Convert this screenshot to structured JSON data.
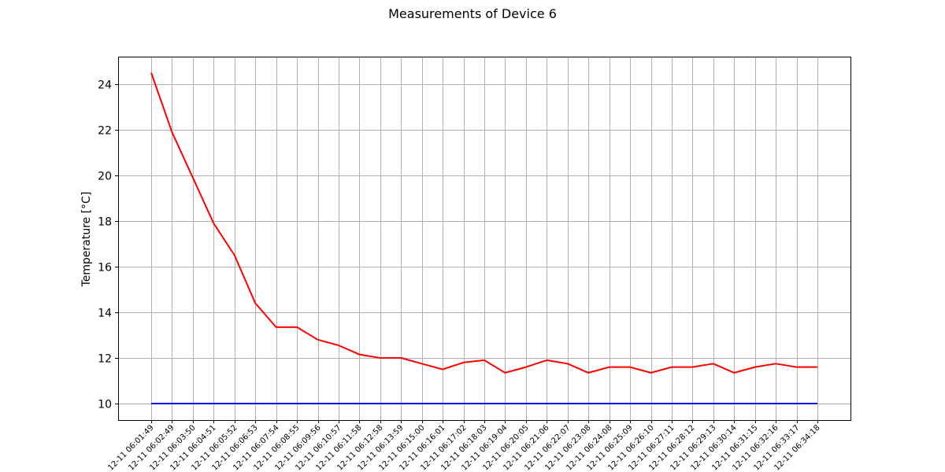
{
  "chart_data": {
    "type": "line",
    "title": "Measurements of Device 6",
    "xlabel": "",
    "ylabel": "Temperature [°C]",
    "ylim": [
      9.3,
      25.2
    ],
    "yticks": [
      10,
      12,
      14,
      16,
      18,
      20,
      22,
      24
    ],
    "grid": true,
    "categories": [
      "12-11 06:01:49",
      "12-11 06:02:49",
      "12-11 06:03:50",
      "12-11 06:04:51",
      "12-11 06:05:52",
      "12-11 06:06:53",
      "12-11 06:07:54",
      "12-11 06:08:55",
      "12-11 06:09:56",
      "12-11 06:10:57",
      "12-11 06:11:58",
      "12-11 06:12:58",
      "12-11 06:13:59",
      "12-11 06:15:00",
      "12-11 06:16:01",
      "12-11 06:17:02",
      "12-11 06:18:03",
      "12-11 06:19:04",
      "12-11 06:20:05",
      "12-11 06:21:06",
      "12-11 06:22:07",
      "12-11 06:23:08",
      "12-11 06:24:08",
      "12-11 06:25:09",
      "12-11 06:26:10",
      "12-11 06:27:11",
      "12-11 06:28:12",
      "12-11 06:29:13",
      "12-11 06:30:14",
      "12-11 06:31:15",
      "12-11 06:32:16",
      "12-11 06:33:17",
      "12-11 06:34:18"
    ],
    "series": [
      {
        "color": "#ff0000",
        "values": [
          24.5,
          21.9,
          19.9,
          17.9,
          16.5,
          14.4,
          13.35,
          13.35,
          12.8,
          12.55,
          12.15,
          12.0,
          12.0,
          11.75,
          11.5,
          11.8,
          11.9,
          11.35,
          11.6,
          11.9,
          11.75,
          11.35,
          11.6,
          11.6,
          11.35,
          11.6,
          11.6,
          11.75,
          11.35,
          11.6,
          11.75,
          11.6,
          11.6
        ]
      },
      {
        "color": "#0000ff",
        "values": [
          10,
          10,
          10,
          10,
          10,
          10,
          10,
          10,
          10,
          10,
          10,
          10,
          10,
          10,
          10,
          10,
          10,
          10,
          10,
          10,
          10,
          10,
          10,
          10,
          10,
          10,
          10,
          10,
          10,
          10,
          10,
          10,
          10
        ]
      }
    ]
  }
}
